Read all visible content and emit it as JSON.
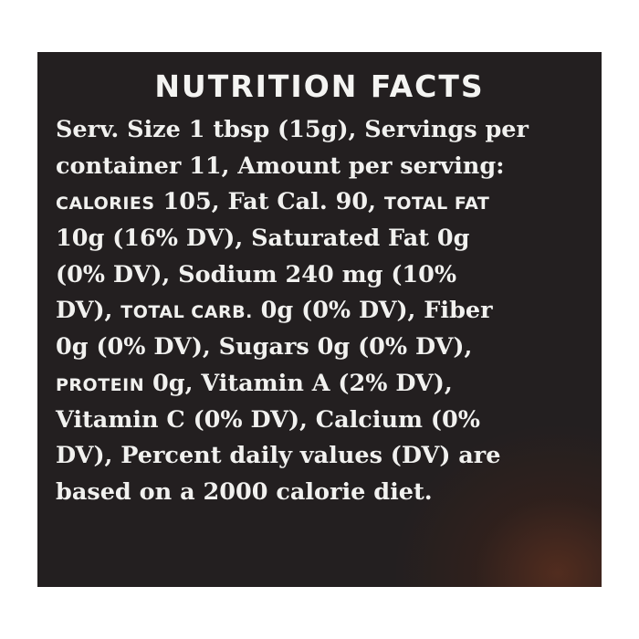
{
  "label": {
    "heading": "NUTRITION FACTS",
    "lines": [
      [
        "Serv. Size 1 tbsp (15g), Servings per"
      ],
      [
        "container 11, Amount per serving:"
      ],
      [
        "CALORIES",
        " 105, Fat Cal. 90, ",
        "TOTAL FAT"
      ],
      [
        "10g (16% DV), Saturated Fat 0g"
      ],
      [
        "(0% DV), Sodium 240 mg (10%"
      ],
      [
        "DV), ",
        "TOTAL CARB.",
        " 0g (0% DV), Fiber"
      ],
      [
        "0g (0% DV), Sugars 0g (0% DV),"
      ],
      [
        "PROTEIN",
        " 0g, Vitamin A (2% DV),"
      ],
      [
        "Vitamin C (0% DV), Calcium (0%"
      ],
      [
        "DV),  Percent daily values (DV) are"
      ],
      [
        "based on a 2000 calorie diet."
      ]
    ]
  },
  "colors": {
    "panel": "#231f20",
    "text": "#f1f1ef"
  }
}
